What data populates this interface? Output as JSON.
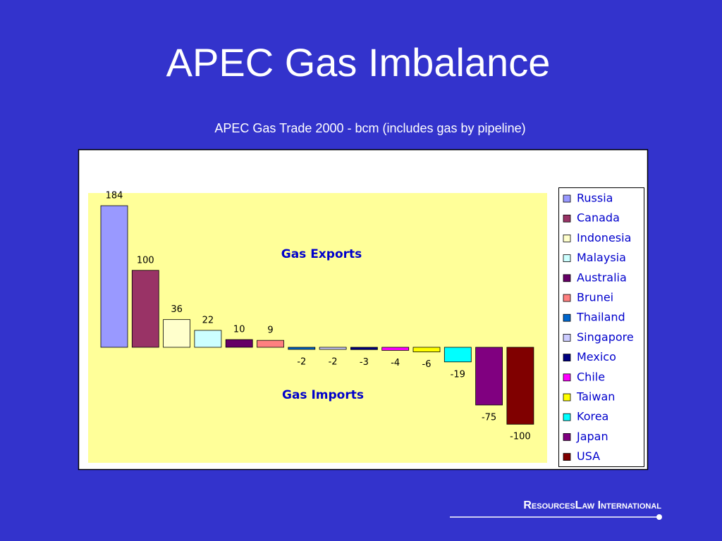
{
  "slide_title": "APEC Gas Imbalance",
  "footer": "ResourcesLaw International",
  "chart_data": {
    "type": "bar",
    "title": "APEC Gas Trade 2000 - bcm (includes gas by pipeline)",
    "annotations": [
      "Gas Exports",
      "Gas Imports"
    ],
    "series": [
      {
        "name": "Russia",
        "color": "#9999ff",
        "values": [
          184
        ]
      },
      {
        "name": "Canada",
        "color": "#993366",
        "values": [
          100
        ]
      },
      {
        "name": "Indonesia",
        "color": "#ffffcc",
        "values": [
          36
        ]
      },
      {
        "name": "Malaysia",
        "color": "#ccffff",
        "values": [
          22
        ]
      },
      {
        "name": "Australia",
        "color": "#660066",
        "values": [
          10
        ]
      },
      {
        "name": "Brunei",
        "color": "#ff8080",
        "values": [
          9
        ]
      },
      {
        "name": "Thailand",
        "color": "#0066cc",
        "values": [
          -2
        ]
      },
      {
        "name": "Singapore",
        "color": "#ccccff",
        "values": [
          -2
        ]
      },
      {
        "name": "Mexico",
        "color": "#000080",
        "values": [
          -3
        ]
      },
      {
        "name": "Chile",
        "color": "#ff00ff",
        "values": [
          -4
        ]
      },
      {
        "name": "Taiwan",
        "color": "#ffff00",
        "values": [
          -6
        ]
      },
      {
        "name": "Korea",
        "color": "#00ffff",
        "values": [
          -19
        ]
      },
      {
        "name": "Japan",
        "color": "#800080",
        "values": [
          -75
        ]
      },
      {
        "name": "USA",
        "color": "#800000",
        "values": [
          -100
        ]
      }
    ],
    "legend": "right"
  }
}
